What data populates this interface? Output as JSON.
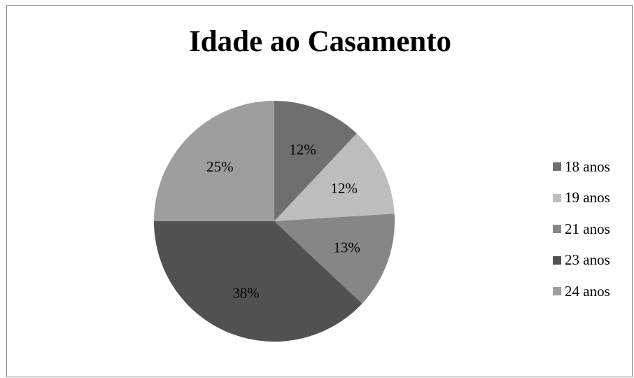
{
  "chart_data": {
    "type": "pie",
    "title": "Idade ao Casamento",
    "legend_position": "right",
    "slices": [
      {
        "name": "18 anos",
        "value": 12,
        "label": "12%",
        "color": "#6f6f6f"
      },
      {
        "name": "19 anos",
        "value": 12,
        "label": "12%",
        "color": "#bdbdbd"
      },
      {
        "name": "21 anos",
        "value": 13,
        "label": "13%",
        "color": "#868686"
      },
      {
        "name": "23 anos",
        "value": 38,
        "label": "38%",
        "color": "#515151"
      },
      {
        "name": "24 anos",
        "value": 25,
        "label": "25%",
        "color": "#9e9e9e"
      }
    ]
  }
}
